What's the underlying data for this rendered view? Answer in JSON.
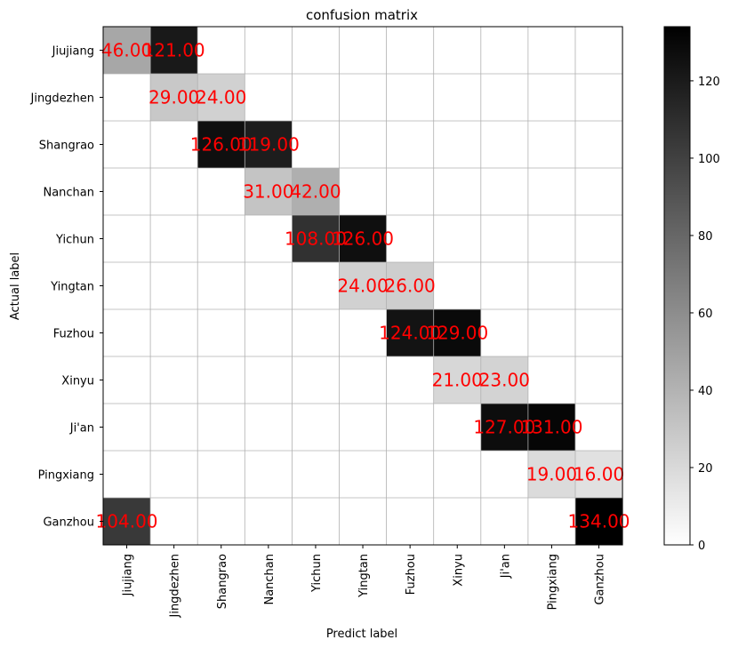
{
  "chart_data": {
    "type": "heatmap",
    "title": "confusion matrix",
    "xlabel": "Predict label",
    "ylabel": "Actual label",
    "x_categories": [
      "Jiujiang",
      "Jingdezhen",
      "Shangrao",
      "Nanchan",
      "Yichun",
      "Yingtan",
      "Fuzhou",
      "Xinyu",
      "Ji'an",
      "Pingxiang",
      "Ganzhou"
    ],
    "y_categories": [
      "Jiujiang",
      "Jingdezhen",
      "Shangrao",
      "Nanchan",
      "Yichun",
      "Yingtan",
      "Fuzhou",
      "Xinyu",
      "Ji'an",
      "Pingxiang",
      "Ganzhou"
    ],
    "cells": [
      {
        "row": 0,
        "col": 0,
        "value": 46,
        "label": "46.00"
      },
      {
        "row": 0,
        "col": 1,
        "value": 121,
        "label": "121.00"
      },
      {
        "row": 1,
        "col": 1,
        "value": 29,
        "label": "29.00"
      },
      {
        "row": 1,
        "col": 2,
        "value": 24,
        "label": "24.00"
      },
      {
        "row": 2,
        "col": 2,
        "value": 126,
        "label": "126.00"
      },
      {
        "row": 2,
        "col": 3,
        "value": 119,
        "label": "119.00"
      },
      {
        "row": 3,
        "col": 3,
        "value": 31,
        "label": "31.00"
      },
      {
        "row": 3,
        "col": 4,
        "value": 42,
        "label": "42.00"
      },
      {
        "row": 4,
        "col": 4,
        "value": 108,
        "label": "108.00"
      },
      {
        "row": 4,
        "col": 5,
        "value": 126,
        "label": "126.00"
      },
      {
        "row": 5,
        "col": 5,
        "value": 24,
        "label": "24.00"
      },
      {
        "row": 5,
        "col": 6,
        "value": 26,
        "label": "26.00"
      },
      {
        "row": 6,
        "col": 6,
        "value": 124,
        "label": "124.00"
      },
      {
        "row": 6,
        "col": 7,
        "value": 129,
        "label": "129.00"
      },
      {
        "row": 7,
        "col": 7,
        "value": 21,
        "label": "21.00"
      },
      {
        "row": 7,
        "col": 8,
        "value": 23,
        "label": "23.00"
      },
      {
        "row": 8,
        "col": 8,
        "value": 127,
        "label": "127.00"
      },
      {
        "row": 8,
        "col": 9,
        "value": 131,
        "label": "131.00"
      },
      {
        "row": 9,
        "col": 9,
        "value": 19,
        "label": "19.00"
      },
      {
        "row": 9,
        "col": 10,
        "value": 16,
        "label": "16.00"
      },
      {
        "row": 10,
        "col": 0,
        "value": 104,
        "label": "104.00"
      },
      {
        "row": 10,
        "col": 10,
        "value": 134,
        "label": "134.00"
      }
    ],
    "colormap": "gray_r",
    "vmin": 0,
    "vmax": 134,
    "colorbar_ticks": [
      0,
      20,
      40,
      60,
      80,
      100,
      120
    ],
    "grid": true,
    "annotation_color": "#ff0000"
  }
}
